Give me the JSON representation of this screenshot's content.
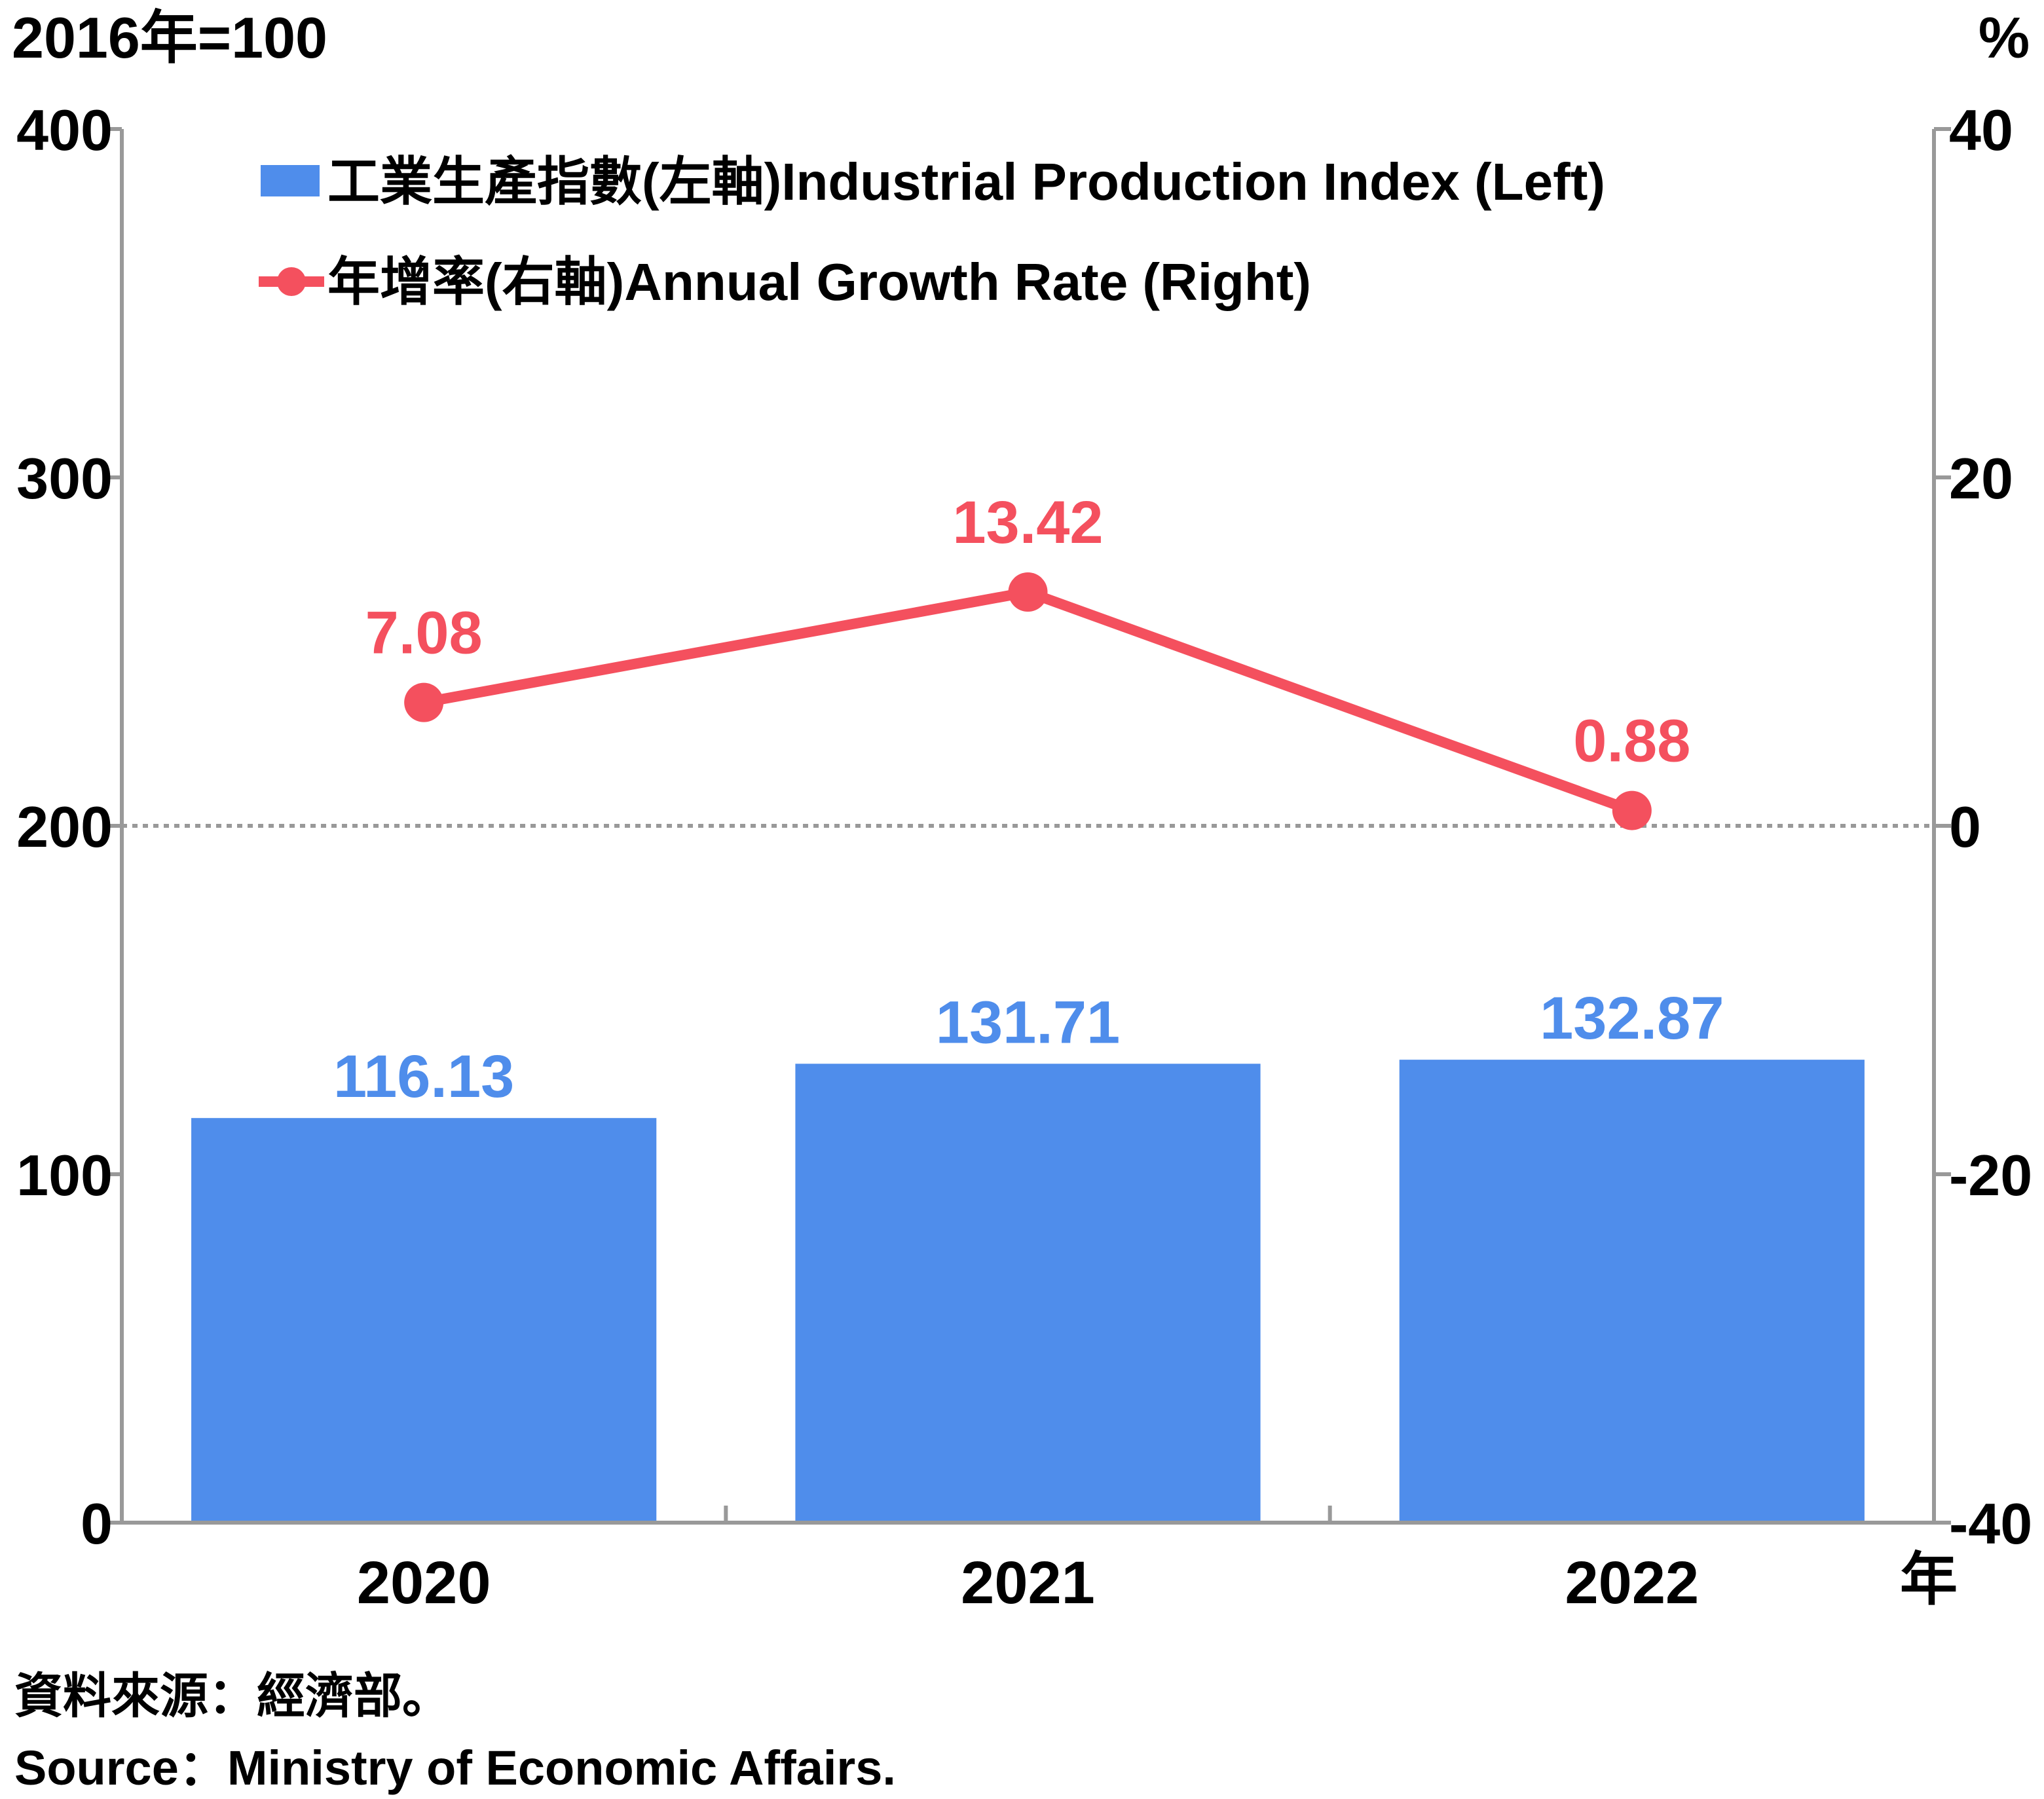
{
  "chart_data": {
    "type": "bar+line",
    "categories": [
      "2020",
      "2021",
      "2022"
    ],
    "x_unit": "年",
    "left_axis": {
      "unit": "2016年=100",
      "min": 0,
      "max": 400,
      "ticks": [
        0,
        100,
        200,
        300,
        400
      ]
    },
    "right_axis": {
      "unit": "%",
      "min": -40,
      "max": 40,
      "ticks": [
        -40,
        -20,
        0,
        20,
        40
      ]
    },
    "series": [
      {
        "name": "工業生產指數(左軸)Industrial Production Index (Left)",
        "type": "bar",
        "axis": "left",
        "values": [
          116.13,
          131.71,
          132.87
        ],
        "labels": [
          "116.13",
          "131.71",
          "132.87"
        ],
        "color": "#4F8DEB"
      },
      {
        "name": "年增率(右軸)Annual Growth Rate (Right)",
        "type": "line",
        "axis": "right",
        "values": [
          7.08,
          13.42,
          0.88
        ],
        "labels": [
          "7.08",
          "13.42",
          "0.88"
        ],
        "color": "#F4505E"
      }
    ],
    "zero_line": "dotted",
    "legend_position": "top-left",
    "grid": false
  },
  "source": {
    "zh": "資料來源：經濟部。",
    "en": "Source：Ministry of Economic Affairs."
  }
}
